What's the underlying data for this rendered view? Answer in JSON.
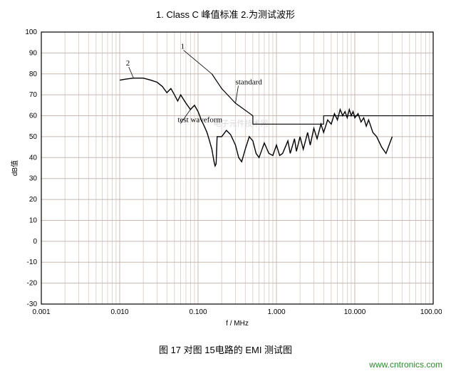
{
  "top_caption": "1. Class C 峰值标准    2.为测试波形",
  "bottom_caption": "图 17  对图 15电路的 EMI 测试图",
  "footer_link": "www.cntronics.com",
  "chart": {
    "type": "line",
    "background_color": "#ffffff",
    "grid_color": "#c8b8b0",
    "border_color": "#000000",
    "x_axis": {
      "scale": "log",
      "min": 0.001,
      "max": 100.0,
      "label": "f / MHz",
      "label_fontsize": 10,
      "ticks": [
        0.001,
        0.01,
        0.1,
        1.0,
        10.0,
        100.0
      ],
      "tick_labels": [
        "0.001",
        "0.010",
        "0.100",
        "1.000",
        "10.000",
        "100.000"
      ]
    },
    "y_axis": {
      "scale": "linear",
      "min": -30,
      "max": 100,
      "label": "dB值",
      "label_fontsize": 10,
      "ticks": [
        -30,
        -20,
        -10,
        0,
        10,
        20,
        30,
        40,
        50,
        60,
        70,
        80,
        90,
        100
      ]
    },
    "watermark": {
      "text": "电子元件技术网",
      "color": "#d8d8d8",
      "fontsize": 11
    },
    "series": [
      {
        "name": "standard",
        "label_key": "1",
        "color": "#000000",
        "line_width": 1.2,
        "points": [
          [
            0.15,
            80
          ],
          [
            0.2,
            73
          ],
          [
            0.3,
            66
          ],
          [
            0.5,
            60
          ],
          [
            0.5,
            56
          ],
          [
            4.0,
            56
          ],
          [
            4.0,
            60
          ],
          [
            100.0,
            60
          ]
        ]
      },
      {
        "name": "test_waveform",
        "label_key": "2",
        "color": "#000000",
        "line_width": 1.4,
        "points": [
          [
            0.01,
            77
          ],
          [
            0.012,
            77.5
          ],
          [
            0.015,
            78
          ],
          [
            0.02,
            78
          ],
          [
            0.025,
            77
          ],
          [
            0.03,
            76
          ],
          [
            0.035,
            74
          ],
          [
            0.04,
            71
          ],
          [
            0.045,
            73
          ],
          [
            0.05,
            70
          ],
          [
            0.055,
            67
          ],
          [
            0.06,
            70
          ],
          [
            0.07,
            66
          ],
          [
            0.08,
            63
          ],
          [
            0.09,
            65
          ],
          [
            0.1,
            62
          ],
          [
            0.11,
            58
          ],
          [
            0.12,
            55
          ],
          [
            0.13,
            52
          ],
          [
            0.14,
            48
          ],
          [
            0.15,
            44
          ],
          [
            0.16,
            38
          ],
          [
            0.165,
            36
          ],
          [
            0.17,
            37
          ],
          [
            0.175,
            50
          ],
          [
            0.2,
            50
          ],
          [
            0.23,
            53
          ],
          [
            0.26,
            51
          ],
          [
            0.3,
            46
          ],
          [
            0.33,
            40
          ],
          [
            0.36,
            38
          ],
          [
            0.4,
            44
          ],
          [
            0.45,
            50
          ],
          [
            0.5,
            48
          ],
          [
            0.55,
            42
          ],
          [
            0.6,
            40
          ],
          [
            0.7,
            47
          ],
          [
            0.8,
            42
          ],
          [
            0.9,
            41
          ],
          [
            1.0,
            46
          ],
          [
            1.1,
            41
          ],
          [
            1.2,
            42
          ],
          [
            1.4,
            48
          ],
          [
            1.5,
            42
          ],
          [
            1.7,
            49
          ],
          [
            1.8,
            43
          ],
          [
            2.0,
            50
          ],
          [
            2.2,
            44
          ],
          [
            2.5,
            52
          ],
          [
            2.7,
            46
          ],
          [
            3.0,
            54
          ],
          [
            3.3,
            49
          ],
          [
            3.7,
            56
          ],
          [
            4.0,
            52
          ],
          [
            4.5,
            58
          ],
          [
            5.0,
            56
          ],
          [
            5.5,
            61
          ],
          [
            6.0,
            58
          ],
          [
            6.5,
            63
          ],
          [
            7.0,
            60
          ],
          [
            7.5,
            62
          ],
          [
            8.0,
            59
          ],
          [
            8.5,
            63
          ],
          [
            9.0,
            60
          ],
          [
            9.5,
            62
          ],
          [
            10.0,
            59
          ],
          [
            11.0,
            61
          ],
          [
            12.0,
            57
          ],
          [
            13.0,
            59
          ],
          [
            14.0,
            55
          ],
          [
            15.0,
            58
          ],
          [
            17.0,
            52
          ],
          [
            19.0,
            50
          ],
          [
            22.0,
            45
          ],
          [
            25.0,
            42
          ],
          [
            28.0,
            47
          ],
          [
            30.0,
            50
          ]
        ]
      }
    ],
    "annotations": [
      {
        "key": "1",
        "text": "1",
        "at": [
          0.06,
          92
        ],
        "line_to": [
          0.15,
          80
        ]
      },
      {
        "key": "standard",
        "text": "standard",
        "at": [
          0.3,
          75
        ],
        "line_to": [
          0.3,
          66
        ]
      },
      {
        "key": "2",
        "text": "2",
        "at": [
          0.012,
          84
        ],
        "line_to": [
          0.015,
          78
        ]
      },
      {
        "key": "test_waveform",
        "text": "test waveform",
        "at": [
          0.055,
          57
        ],
        "line_to": [
          0.08,
          63
        ]
      }
    ]
  }
}
